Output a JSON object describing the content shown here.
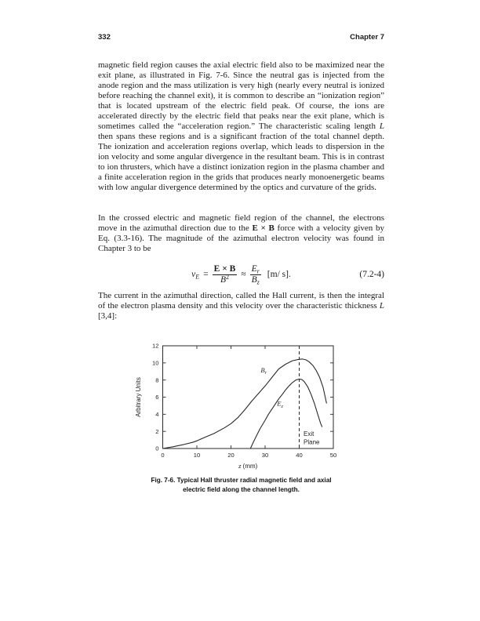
{
  "header": {
    "page_number": "332",
    "chapter": "Chapter 7"
  },
  "paragraphs": {
    "p1": {
      "run1": "magnetic field region causes the axial electric field also to be maximized near the exit plane, as illustrated in Fig. 7-6. Since the neutral gas is injected from the anode region and the mass utilization is very high (nearly every neutral is ionized before reaching the channel exit), it is common to describe an “ionization region” that is located upstream of the electric field peak. Of course, the ions are accelerated directly by the electric field that peaks near the exit plane, which is sometimes called the “acceleration region.” The characteristic scaling length ",
      "run2_italic": "L",
      "run3": " then spans these regions and is a significant fraction of the total channel depth. The ionization and acceleration regions overlap, which leads to dispersion in the ion velocity and some angular divergence in the resultant beam. This is in contrast to ion thrusters, which have a distinct ionization region in the plasma chamber and a finite acceleration region in the grids that produces nearly monoenergetic beams with low angular divergence determined by the optics and curvature of the grids."
    },
    "p2": {
      "run1": "In the crossed electric and magnetic field region of the channel, the electrons move in the azimuthal direction due to the ",
      "run2_bold": "E × B",
      "run3": " force with a velocity given by Eq. (3.3-16). The magnitude of the azimuthal electron velocity was found in Chapter 3 to be"
    },
    "p3": {
      "run1": "The current in the azimuthal direction, called the Hall current, is then the integral of the electron plasma density and this velocity over the characteristic thickness ",
      "run2_italic": "L",
      "run3": " [3,4]:"
    }
  },
  "equation": {
    "lhs_var": "v",
    "lhs_sub": "E",
    "equals": "=",
    "frac1_num": "E × B",
    "frac1_den_base": "B",
    "frac1_den_sup": "2",
    "approx": "≈",
    "frac2_num_base": "E",
    "frac2_num_sub": "r",
    "frac2_den_base": "B",
    "frac2_den_sub": "z",
    "units": "[m/ s].",
    "number": "(7.2-4)"
  },
  "figure": {
    "caption_line1": "Fig. 7-6. Typical Hall thruster radial magnetic field and axial",
    "caption_line2": "electric field along the channel length."
  },
  "chart_data": {
    "type": "line",
    "title": "",
    "xlabel_var": "z",
    "xlabel_unit": " (mm)",
    "ylabel": "Arbitrary Units",
    "xlim": [
      0,
      50
    ],
    "ylim": [
      0,
      12
    ],
    "xticks": [
      0,
      10,
      20,
      30,
      40,
      50
    ],
    "yticks": [
      0,
      2,
      4,
      6,
      8,
      10,
      12
    ],
    "grid": false,
    "legend": "inline-curve-labels",
    "line_color": "#2a2a2a",
    "series": [
      {
        "name": "radial-magnetic-field",
        "label_main": "B",
        "label_sub": "r",
        "label_pos": {
          "x": 29.6,
          "y": 8.9
        },
        "points": [
          [
            0,
            0
          ],
          [
            3,
            0.2
          ],
          [
            6,
            0.45
          ],
          [
            9,
            0.75
          ],
          [
            10,
            0.9
          ],
          [
            12,
            1.25
          ],
          [
            15,
            1.75
          ],
          [
            18,
            2.4
          ],
          [
            20,
            2.9
          ],
          [
            22,
            3.6
          ],
          [
            24,
            4.5
          ],
          [
            26,
            5.5
          ],
          [
            28,
            6.4
          ],
          [
            30,
            7.3
          ],
          [
            32,
            8.3
          ],
          [
            34,
            9.3
          ],
          [
            36,
            9.85
          ],
          [
            38,
            10.25
          ],
          [
            40,
            10.42
          ],
          [
            41,
            10.45
          ],
          [
            42,
            10.35
          ],
          [
            43,
            10.1
          ],
          [
            44,
            9.7
          ],
          [
            45,
            9.1
          ],
          [
            46,
            8.3
          ],
          [
            47,
            7.15
          ],
          [
            48,
            5.3
          ]
        ]
      },
      {
        "name": "axial-electric-field",
        "label_main": "E",
        "label_sub": "z",
        "label_pos": {
          "x": 34.4,
          "y": 5.0
        },
        "points": [
          [
            25.7,
            0
          ],
          [
            26.5,
            0.7
          ],
          [
            27.5,
            1.5
          ],
          [
            28.5,
            2.3
          ],
          [
            30,
            3.3
          ],
          [
            31,
            4.0
          ],
          [
            32,
            4.6
          ],
          [
            33,
            5.2
          ],
          [
            34,
            5.8
          ],
          [
            35,
            6.3
          ],
          [
            36,
            6.85
          ],
          [
            37,
            7.3
          ],
          [
            38,
            7.7
          ],
          [
            39,
            8.0
          ],
          [
            40,
            8.12
          ],
          [
            40.8,
            8.05
          ],
          [
            41.5,
            7.8
          ],
          [
            42.5,
            7.2
          ],
          [
            43.5,
            6.3
          ],
          [
            44.5,
            5.2
          ],
          [
            45.5,
            3.9
          ],
          [
            46.3,
            2.9
          ],
          [
            46.7,
            2.55
          ]
        ]
      }
    ],
    "annotation": {
      "x": 40,
      "style": "vertical-dashed-line",
      "label_line1": "Exit",
      "label_line2": "Plane",
      "label_y1": 1.45,
      "label_y2": 0.5
    }
  }
}
